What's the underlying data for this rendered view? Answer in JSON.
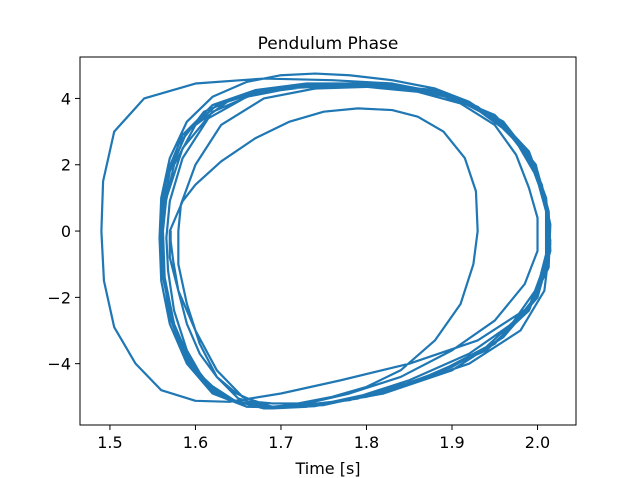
{
  "chart_data": {
    "type": "line",
    "title": "Pendulum Phase",
    "xlabel": "Time [s]",
    "ylabel": "",
    "xlim": [
      1.465,
      2.045
    ],
    "ylim": [
      -5.85,
      5.25
    ],
    "xticks": [
      1.5,
      1.6,
      1.7,
      1.8,
      1.9,
      2.0
    ],
    "xtick_labels": [
      "1.5",
      "1.6",
      "1.7",
      "1.8",
      "1.9",
      "2.0"
    ],
    "yticks": [
      -4,
      -2,
      0,
      2,
      4
    ],
    "ytick_labels": [
      "−4",
      "−2",
      "0",
      "2",
      "4"
    ],
    "grid": false,
    "series": [
      {
        "color": "#1f77b4",
        "points": [
          [
            1.571,
            0.0
          ],
          [
            1.571,
            -0.3
          ],
          [
            1.574,
            -0.9
          ],
          [
            1.58,
            -1.8
          ],
          [
            1.59,
            -2.8
          ],
          [
            1.605,
            -3.7
          ],
          [
            1.625,
            -4.4
          ],
          [
            1.648,
            -4.9
          ],
          [
            1.67,
            -5.15
          ],
          [
            1.69,
            -5.2
          ],
          [
            1.72,
            -5.2
          ],
          [
            1.76,
            -5.0
          ],
          [
            1.8,
            -4.7
          ],
          [
            1.84,
            -4.2
          ],
          [
            1.88,
            -3.3
          ],
          [
            1.91,
            -2.2
          ],
          [
            1.925,
            -1.0
          ],
          [
            1.93,
            0.0
          ],
          [
            1.928,
            1.2
          ],
          [
            1.915,
            2.2
          ],
          [
            1.89,
            3.0
          ],
          [
            1.86,
            3.45
          ],
          [
            1.83,
            3.65
          ],
          [
            1.79,
            3.7
          ],
          [
            1.75,
            3.6
          ],
          [
            1.71,
            3.3
          ],
          [
            1.67,
            2.8
          ],
          [
            1.63,
            2.1
          ],
          [
            1.6,
            1.4
          ],
          [
            1.585,
            0.9
          ],
          [
            1.57,
            0.0
          ],
          [
            1.57,
            -0.8
          ],
          [
            1.58,
            -1.8
          ],
          [
            1.6,
            -3.0
          ],
          [
            1.625,
            -4.2
          ],
          [
            1.655,
            -5.0
          ],
          [
            1.69,
            -5.3
          ],
          [
            1.73,
            -5.2
          ],
          [
            1.78,
            -4.9
          ],
          [
            1.84,
            -4.4
          ],
          [
            1.9,
            -3.6
          ],
          [
            1.95,
            -2.7
          ],
          [
            1.985,
            -1.6
          ],
          [
            2.0,
            -0.6
          ],
          [
            2.0,
            0.4
          ],
          [
            1.99,
            1.3
          ],
          [
            1.975,
            2.3
          ],
          [
            1.95,
            3.2
          ],
          [
            1.91,
            3.85
          ],
          [
            1.86,
            4.2
          ],
          [
            1.8,
            4.35
          ],
          [
            1.74,
            4.3
          ],
          [
            1.68,
            4.0
          ],
          [
            1.63,
            3.2
          ],
          [
            1.6,
            2.0
          ],
          [
            1.583,
            0.8
          ],
          [
            1.58,
            0.0
          ],
          [
            1.58,
            -1.0
          ],
          [
            1.59,
            -2.2
          ],
          [
            1.605,
            -3.4
          ],
          [
            1.625,
            -4.4
          ],
          [
            1.65,
            -5.05
          ],
          [
            1.69,
            -5.35
          ],
          [
            1.73,
            -5.3
          ],
          [
            1.79,
            -5.0
          ],
          [
            1.85,
            -4.5
          ],
          [
            1.92,
            -3.7
          ],
          [
            1.97,
            -2.8
          ],
          [
            2.0,
            -1.7
          ],
          [
            2.012,
            -0.5
          ],
          [
            2.012,
            0.5
          ],
          [
            2.0,
            1.6
          ],
          [
            1.975,
            2.7
          ],
          [
            1.94,
            3.6
          ],
          [
            1.9,
            4.1
          ],
          [
            1.85,
            4.35
          ],
          [
            1.79,
            4.42
          ],
          [
            1.72,
            4.35
          ],
          [
            1.66,
            4.05
          ],
          [
            1.615,
            3.4
          ],
          [
            1.585,
            2.2
          ],
          [
            1.57,
            0.9
          ],
          [
            1.566,
            -0.2
          ],
          [
            1.568,
            -1.2
          ],
          [
            1.575,
            -2.4
          ],
          [
            1.59,
            -3.6
          ],
          [
            1.61,
            -4.5
          ],
          [
            1.64,
            -5.1
          ],
          [
            1.68,
            -5.3
          ],
          [
            1.75,
            -5.25
          ],
          [
            1.82,
            -4.85
          ],
          [
            1.9,
            -4.1
          ],
          [
            1.96,
            -3.2
          ],
          [
            2.0,
            -2.0
          ],
          [
            2.015,
            -0.6
          ],
          [
            2.013,
            0.6
          ],
          [
            2.0,
            1.8
          ],
          [
            1.97,
            2.9
          ],
          [
            1.93,
            3.75
          ],
          [
            1.88,
            4.25
          ],
          [
            1.81,
            4.42
          ],
          [
            1.74,
            4.38
          ],
          [
            1.67,
            4.15
          ],
          [
            1.62,
            3.6
          ],
          [
            1.585,
            2.5
          ],
          [
            1.566,
            1.0
          ],
          [
            1.562,
            0.0
          ],
          [
            1.564,
            -1.4
          ],
          [
            1.575,
            -2.8
          ],
          [
            1.595,
            -4.0
          ],
          [
            1.625,
            -4.9
          ],
          [
            1.66,
            -5.3
          ],
          [
            1.7,
            -5.32
          ],
          [
            1.78,
            -5.1
          ],
          [
            1.86,
            -4.5
          ],
          [
            1.94,
            -3.6
          ],
          [
            1.99,
            -2.4
          ],
          [
            2.01,
            -1.0
          ],
          [
            2.012,
            0.5
          ],
          [
            1.998,
            2.0
          ],
          [
            1.96,
            3.2
          ],
          [
            1.91,
            3.95
          ],
          [
            1.85,
            4.3
          ],
          [
            1.78,
            4.4
          ],
          [
            1.7,
            4.3
          ],
          [
            1.64,
            3.95
          ],
          [
            1.6,
            3.2
          ],
          [
            1.575,
            2.0
          ],
          [
            1.562,
            0.5
          ],
          [
            1.561,
            -1.0
          ],
          [
            1.57,
            -2.6
          ],
          [
            1.59,
            -3.9
          ],
          [
            1.62,
            -4.85
          ],
          [
            1.66,
            -5.3
          ],
          [
            1.72,
            -5.3
          ],
          [
            1.8,
            -5.0
          ],
          [
            1.88,
            -4.35
          ],
          [
            1.95,
            -3.4
          ],
          [
            1.995,
            -2.1
          ],
          [
            2.012,
            -0.6
          ],
          [
            2.01,
            0.8
          ],
          [
            1.99,
            2.2
          ],
          [
            1.955,
            3.3
          ],
          [
            1.9,
            4.05
          ],
          [
            1.82,
            4.4
          ],
          [
            1.75,
            4.42
          ],
          [
            1.68,
            4.25
          ],
          [
            1.625,
            3.8
          ],
          [
            1.59,
            3.0
          ],
          [
            1.57,
            1.8
          ],
          [
            1.56,
            0.3
          ],
          [
            1.562,
            -1.3
          ],
          [
            1.575,
            -2.9
          ],
          [
            1.6,
            -4.2
          ],
          [
            1.635,
            -5.05
          ],
          [
            1.68,
            -5.35
          ],
          [
            1.74,
            -5.28
          ],
          [
            1.82,
            -4.9
          ],
          [
            1.9,
            -4.2
          ],
          [
            1.96,
            -3.2
          ],
          [
            2.0,
            -1.9
          ],
          [
            2.015,
            -0.4
          ],
          [
            2.01,
            1.0
          ],
          [
            1.99,
            2.4
          ],
          [
            1.95,
            3.5
          ],
          [
            1.89,
            4.15
          ],
          [
            1.83,
            4.45
          ],
          [
            1.76,
            4.55
          ],
          [
            1.68,
            4.6
          ],
          [
            1.6,
            4.45
          ],
          [
            1.54,
            4.0
          ],
          [
            1.505,
            3.0
          ],
          [
            1.492,
            1.5
          ],
          [
            1.49,
            0.0
          ],
          [
            1.493,
            -1.5
          ],
          [
            1.505,
            -2.9
          ],
          [
            1.53,
            -4.0
          ],
          [
            1.56,
            -4.8
          ],
          [
            1.6,
            -5.12
          ],
          [
            1.64,
            -5.15
          ],
          [
            1.7,
            -4.9
          ],
          [
            1.77,
            -4.5
          ],
          [
            1.85,
            -4.0
          ],
          [
            1.93,
            -3.3
          ],
          [
            1.99,
            -2.3
          ],
          [
            2.013,
            -1.1
          ],
          [
            2.015,
            0.2
          ],
          [
            2.005,
            1.4
          ],
          [
            1.985,
            2.5
          ],
          [
            1.955,
            3.3
          ],
          [
            1.92,
            3.9
          ],
          [
            1.88,
            4.3
          ],
          [
            1.83,
            4.55
          ],
          [
            1.78,
            4.7
          ],
          [
            1.74,
            4.75
          ],
          [
            1.7,
            4.7
          ],
          [
            1.66,
            4.5
          ],
          [
            1.62,
            4.05
          ],
          [
            1.59,
            3.3
          ],
          [
            1.57,
            2.2
          ],
          [
            1.56,
            1.0
          ],
          [
            1.558,
            -0.2
          ],
          [
            1.56,
            -1.5
          ],
          [
            1.57,
            -2.8
          ],
          [
            1.59,
            -4.0
          ],
          [
            1.62,
            -4.9
          ],
          [
            1.66,
            -5.3
          ],
          [
            1.7,
            -5.32
          ],
          [
            1.76,
            -5.15
          ],
          [
            1.84,
            -4.7
          ],
          [
            1.92,
            -4.0
          ],
          [
            1.98,
            -3.0
          ],
          [
            2.008,
            -1.8
          ],
          [
            2.015,
            -0.3
          ],
          [
            2.008,
            1.1
          ],
          [
            1.99,
            2.3
          ],
          [
            1.96,
            3.3
          ],
          [
            1.91,
            4.0
          ],
          [
            1.85,
            4.35
          ],
          [
            1.79,
            4.45
          ],
          [
            1.72,
            4.4
          ],
          [
            1.66,
            4.15
          ],
          [
            1.61,
            3.6
          ],
          [
            1.58,
            2.6
          ],
          [
            1.563,
            1.3
          ],
          [
            1.56,
            0.0
          ],
          [
            1.562,
            -1.4
          ],
          [
            1.573,
            -2.7
          ],
          [
            1.59,
            -3.8
          ],
          [
            1.615,
            -4.6
          ],
          [
            1.645,
            -5.1
          ],
          [
            1.68,
            -5.32
          ],
          [
            1.72,
            -5.3
          ],
          [
            1.79,
            -5.05
          ],
          [
            1.87,
            -4.45
          ],
          [
            1.94,
            -3.5
          ],
          [
            1.99,
            -2.3
          ],
          [
            2.01,
            -0.9
          ],
          [
            2.01,
            0.6
          ],
          [
            1.995,
            2.0
          ],
          [
            1.965,
            3.0
          ],
          [
            1.925,
            3.75
          ],
          [
            1.87,
            4.25
          ],
          [
            1.8,
            4.45
          ],
          [
            1.73,
            4.45
          ],
          [
            1.67,
            4.25
          ],
          [
            1.62,
            3.8
          ],
          [
            1.585,
            2.9
          ],
          [
            1.566,
            1.7
          ],
          [
            1.56,
            0.3
          ]
        ]
      }
    ]
  }
}
